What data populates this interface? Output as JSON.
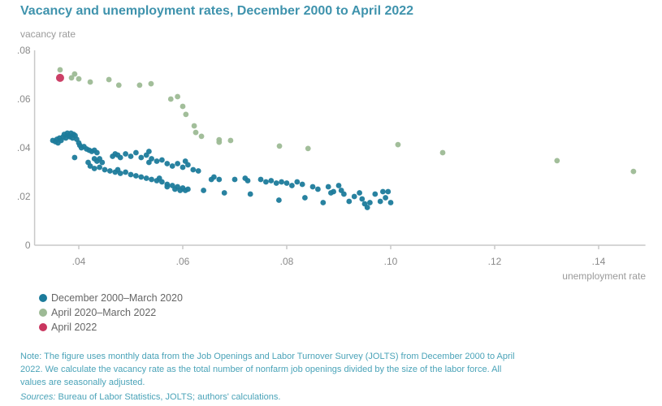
{
  "title": "Vacancy and unemployment rates, December 2000 to April 2022",
  "note": "Note: The figure uses monthly data from the Job Openings and Labor Turnover Survey (JOLTS) from December 2000 to April 2022. We calculate the vacancy rate as the total number of nonfarm job openings divided by the size of the labor force. All values are seasonally adjusted.",
  "sources_label": "Sources:",
  "sources_text": " Bureau of Labor Statistics, JOLTS; authors' calculations.",
  "chart_data": {
    "type": "scatter",
    "title": "Vacancy and unemployment rates, December 2000 to April 2022",
    "xlabel": "unemployment rate",
    "ylabel": "vacancy rate",
    "xlim": [
      0.0315,
      0.149
    ],
    "ylim": [
      0,
      0.08
    ],
    "xticks": [
      {
        "v": 0.04,
        "label": ".04"
      },
      {
        "v": 0.06,
        "label": ".06"
      },
      {
        "v": 0.08,
        "label": ".08"
      },
      {
        "v": 0.1,
        "label": ".10"
      },
      {
        "v": 0.12,
        "label": ".12"
      },
      {
        "v": 0.14,
        "label": ".14"
      }
    ],
    "yticks": [
      {
        "v": 0,
        "label": "0"
      },
      {
        "v": 0.02,
        "label": ".02"
      },
      {
        "v": 0.04,
        "label": ".04"
      },
      {
        "v": 0.06,
        "label": ".06"
      },
      {
        "v": 0.08,
        "label": ".08"
      }
    ],
    "grid": false,
    "legend_position": "bottom-left",
    "series": [
      {
        "name": "December 2000–March 2020",
        "color": "#1c7b9b",
        "points": [
          [
            0.035,
            0.043
          ],
          [
            0.0355,
            0.0425
          ],
          [
            0.0358,
            0.0435
          ],
          [
            0.036,
            0.042
          ],
          [
            0.0363,
            0.044
          ],
          [
            0.0366,
            0.043
          ],
          [
            0.037,
            0.0445
          ],
          [
            0.0372,
            0.0455
          ],
          [
            0.0375,
            0.044
          ],
          [
            0.0378,
            0.046
          ],
          [
            0.038,
            0.045
          ],
          [
            0.0383,
            0.0445
          ],
          [
            0.0385,
            0.046
          ],
          [
            0.0388,
            0.044
          ],
          [
            0.039,
            0.0455
          ],
          [
            0.0393,
            0.045
          ],
          [
            0.0396,
            0.0435
          ],
          [
            0.04,
            0.042
          ],
          [
            0.0402,
            0.041
          ],
          [
            0.0405,
            0.04
          ],
          [
            0.041,
            0.0405
          ],
          [
            0.0415,
            0.0395
          ],
          [
            0.042,
            0.039
          ],
          [
            0.0425,
            0.0385
          ],
          [
            0.043,
            0.039
          ],
          [
            0.0435,
            0.038
          ],
          [
            0.0392,
            0.036
          ],
          [
            0.043,
            0.0355
          ],
          [
            0.0435,
            0.0345
          ],
          [
            0.044,
            0.0355
          ],
          [
            0.0445,
            0.034
          ],
          [
            0.0465,
            0.0365
          ],
          [
            0.047,
            0.0375
          ],
          [
            0.0475,
            0.037
          ],
          [
            0.048,
            0.036
          ],
          [
            0.049,
            0.0375
          ],
          [
            0.05,
            0.0365
          ],
          [
            0.051,
            0.038
          ],
          [
            0.052,
            0.036
          ],
          [
            0.053,
            0.037
          ],
          [
            0.0535,
            0.034
          ],
          [
            0.054,
            0.0355
          ],
          [
            0.055,
            0.0345
          ],
          [
            0.056,
            0.035
          ],
          [
            0.057,
            0.0335
          ],
          [
            0.058,
            0.0325
          ],
          [
            0.059,
            0.0335
          ],
          [
            0.06,
            0.032
          ],
          [
            0.0605,
            0.0345
          ],
          [
            0.061,
            0.033
          ],
          [
            0.062,
            0.031
          ],
          [
            0.063,
            0.0305
          ],
          [
            0.0535,
            0.0385
          ],
          [
            0.0418,
            0.034
          ],
          [
            0.0422,
            0.0325
          ],
          [
            0.043,
            0.0315
          ],
          [
            0.044,
            0.032
          ],
          [
            0.045,
            0.031
          ],
          [
            0.046,
            0.0305
          ],
          [
            0.047,
            0.03
          ],
          [
            0.0475,
            0.031
          ],
          [
            0.048,
            0.0295
          ],
          [
            0.049,
            0.03
          ],
          [
            0.05,
            0.029
          ],
          [
            0.051,
            0.0285
          ],
          [
            0.052,
            0.028
          ],
          [
            0.053,
            0.0275
          ],
          [
            0.054,
            0.027
          ],
          [
            0.055,
            0.0265
          ],
          [
            0.056,
            0.026
          ],
          [
            0.057,
            0.025
          ],
          [
            0.058,
            0.0245
          ],
          [
            0.059,
            0.024
          ],
          [
            0.06,
            0.0235
          ],
          [
            0.0605,
            0.0225
          ],
          [
            0.061,
            0.023
          ],
          [
            0.0555,
            0.0275
          ],
          [
            0.057,
            0.024
          ],
          [
            0.0585,
            0.023
          ],
          [
            0.0595,
            0.0225
          ],
          [
            0.064,
            0.0225
          ],
          [
            0.0655,
            0.027
          ],
          [
            0.066,
            0.028
          ],
          [
            0.067,
            0.027
          ],
          [
            0.068,
            0.0215
          ],
          [
            0.07,
            0.027
          ],
          [
            0.072,
            0.0275
          ],
          [
            0.0725,
            0.0265
          ],
          [
            0.073,
            0.021
          ],
          [
            0.075,
            0.027
          ],
          [
            0.076,
            0.026
          ],
          [
            0.077,
            0.0265
          ],
          [
            0.078,
            0.0255
          ],
          [
            0.0785,
            0.0185
          ],
          [
            0.079,
            0.026
          ],
          [
            0.08,
            0.0255
          ],
          [
            0.081,
            0.0245
          ],
          [
            0.082,
            0.026
          ],
          [
            0.083,
            0.025
          ],
          [
            0.0835,
            0.0195
          ],
          [
            0.085,
            0.024
          ],
          [
            0.086,
            0.023
          ],
          [
            0.087,
            0.0175
          ],
          [
            0.088,
            0.024
          ],
          [
            0.0885,
            0.0215
          ],
          [
            0.089,
            0.022
          ],
          [
            0.09,
            0.0245
          ],
          [
            0.0905,
            0.0225
          ],
          [
            0.091,
            0.021
          ],
          [
            0.092,
            0.018
          ],
          [
            0.093,
            0.02
          ],
          [
            0.094,
            0.0215
          ],
          [
            0.0945,
            0.019
          ],
          [
            0.095,
            0.017
          ],
          [
            0.0955,
            0.0155
          ],
          [
            0.096,
            0.0175
          ],
          [
            0.097,
            0.021
          ],
          [
            0.098,
            0.018
          ],
          [
            0.0985,
            0.022
          ],
          [
            0.099,
            0.0195
          ],
          [
            0.0995,
            0.022
          ],
          [
            0.1,
            0.0175
          ]
        ]
      },
      {
        "name": "April 2020–March 2022",
        "color": "#9dba95",
        "points": [
          [
            0.0364,
            0.072
          ],
          [
            0.0386,
            0.0687
          ],
          [
            0.0392,
            0.0703
          ],
          [
            0.04,
            0.0683
          ],
          [
            0.0422,
            0.067
          ],
          [
            0.0458,
            0.068
          ],
          [
            0.0477,
            0.0657
          ],
          [
            0.0517,
            0.0657
          ],
          [
            0.0539,
            0.0663
          ],
          [
            0.0577,
            0.06
          ],
          [
            0.059,
            0.061
          ],
          [
            0.06,
            0.057
          ],
          [
            0.0606,
            0.0537
          ],
          [
            0.0622,
            0.049
          ],
          [
            0.0625,
            0.0463
          ],
          [
            0.0636,
            0.0447
          ],
          [
            0.067,
            0.0433
          ],
          [
            0.067,
            0.0423
          ],
          [
            0.0692,
            0.043
          ],
          [
            0.0786,
            0.0407
          ],
          [
            0.0841,
            0.0397
          ],
          [
            0.1014,
            0.0413
          ],
          [
            0.11,
            0.038
          ],
          [
            0.132,
            0.0347
          ],
          [
            0.1467,
            0.0303
          ]
        ]
      },
      {
        "name": "April 2022",
        "color": "#c9365f",
        "points": [
          [
            0.0364,
            0.0687
          ]
        ]
      }
    ]
  }
}
